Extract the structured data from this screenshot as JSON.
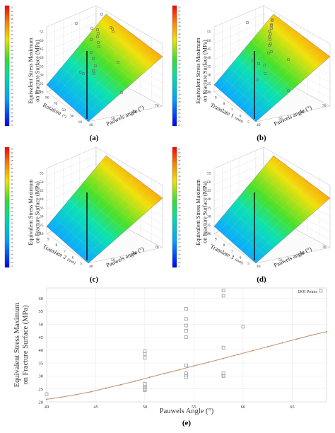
{
  "panels": [
    {
      "id": "a",
      "label": "(a)",
      "ztitle": [
        "Equivalent Stress Maximum",
        "on Fracture Surface (MPa)"
      ],
      "xlabel": "Pauwels angle (°)",
      "ylabel_main": "Rotation",
      "ylabel_unit": "(°)",
      "xticks": [
        "40",
        "50",
        "60",
        "70"
      ],
      "yticks": [
        "110",
        "90",
        "70",
        "50",
        "30",
        "10"
      ],
      "zticks": [
        "20",
        "25",
        "30",
        "35",
        "40",
        "45",
        "50",
        "55"
      ],
      "colorbar_ticks": [
        "51",
        "50",
        "49",
        "48",
        "47",
        "46",
        "45",
        "44",
        "43",
        "42",
        "41",
        "40",
        "39",
        "38",
        "37",
        "36",
        "35",
        "34",
        "33",
        "32",
        "31",
        "30",
        "29",
        "28",
        "27",
        "26",
        "25",
        "24",
        "23",
        "22",
        "21"
      ]
    },
    {
      "id": "b",
      "label": "(b)",
      "ztitle": [
        "Equivalent Stress Maximum",
        "on Fracture Surface (MPa)"
      ],
      "xlabel": "Pauwels angle (°)",
      "ylabel_main": "Translate 1",
      "ylabel_unit": "(mm)",
      "xticks": [
        "40",
        "50",
        "60",
        "70"
      ],
      "yticks": [
        "10",
        "9",
        "8",
        "7",
        "6",
        "5"
      ],
      "zticks": [
        "20",
        "25",
        "30",
        "35",
        "40",
        "45",
        "50",
        "55"
      ],
      "colorbar_ticks": [
        "53",
        "52",
        "51",
        "50",
        "49",
        "48",
        "47",
        "46",
        "45",
        "44",
        "43",
        "42",
        "41",
        "40",
        "39",
        "38",
        "37",
        "36",
        "35",
        "34",
        "33",
        "32",
        "31",
        "30",
        "29",
        "28",
        "27",
        "26",
        "25",
        "24",
        "23",
        "22"
      ]
    },
    {
      "id": "c",
      "label": "(c)",
      "ztitle": [
        "Equivalent Stress Maximum",
        "on Fracture Surface (MPa)"
      ],
      "xlabel": "Pauwels angle (°)",
      "ylabel_main": "Translate 2",
      "ylabel_unit": "(mm)",
      "xticks": [
        "40",
        "50",
        "60",
        "70"
      ],
      "yticks": [
        "10",
        "9",
        "8",
        "7",
        "6",
        "5"
      ],
      "zticks": [
        "20",
        "25",
        "30",
        "35",
        "40",
        "45",
        "50",
        "55"
      ],
      "colorbar_ticks": [
        "51",
        "50",
        "49",
        "48",
        "47",
        "46",
        "45",
        "44",
        "43",
        "42",
        "41",
        "40",
        "39",
        "38",
        "37",
        "36",
        "35",
        "34",
        "33",
        "32",
        "31",
        "30",
        "29",
        "28",
        "27",
        "26",
        "25",
        "24",
        "23",
        "22",
        "21"
      ]
    },
    {
      "id": "d",
      "label": "(d)",
      "ztitle": [
        "Equivalent Stress Maximum",
        "on Fracture Surface (MPa)"
      ],
      "xlabel": "Pauwels angle (°)",
      "ylabel_main": "Translate 3",
      "ylabel_unit": "(mm)",
      "xticks": [
        "40",
        "50",
        "60",
        "70"
      ],
      "yticks": [
        "10",
        "9",
        "8",
        "7",
        "6",
        "5"
      ],
      "zticks": [
        "20",
        "25",
        "30",
        "35",
        "40",
        "45",
        "50",
        "55"
      ],
      "colorbar_ticks": [
        "51",
        "50",
        "49",
        "48",
        "47",
        "46",
        "45",
        "44",
        "43",
        "42",
        "41",
        "40",
        "39",
        "38",
        "37",
        "36",
        "35",
        "34",
        "33",
        "32",
        "31",
        "30",
        "29",
        "28",
        "27",
        "26",
        "25",
        "24",
        "23",
        "22",
        "21"
      ]
    }
  ],
  "chart_data": {
    "type": "scatter",
    "label": "(e)",
    "xlabel": "Pauwels Angle (°)",
    "ylabel": [
      "Equivalent Stress Maximum",
      "on Fracture Surface (MPa)"
    ],
    "xlim": [
      40,
      68.5
    ],
    "ylim": [
      20,
      64
    ],
    "xticks": [
      40,
      45,
      50,
      55,
      60,
      65
    ],
    "yticks": [
      20,
      25,
      30,
      35,
      40,
      45,
      50,
      55,
      60
    ],
    "legend": {
      "text": "DOI Points",
      "placement": "top-right"
    },
    "grid": true,
    "series": [
      {
        "name": "DOI Points",
        "kind": "points",
        "points": [
          [
            40,
            23
          ],
          [
            50,
            24.5
          ],
          [
            50,
            25
          ],
          [
            50,
            25.5
          ],
          [
            50,
            26
          ],
          [
            50,
            26.5
          ],
          [
            50,
            27
          ],
          [
            50,
            37
          ],
          [
            50,
            38.5
          ],
          [
            50,
            39.5
          ],
          [
            54.2,
            29.5
          ],
          [
            54.2,
            30.5
          ],
          [
            54.2,
            31
          ],
          [
            54.2,
            34
          ],
          [
            54.2,
            45
          ],
          [
            54.2,
            47.5
          ],
          [
            54.2,
            49.5
          ],
          [
            54.2,
            52
          ],
          [
            54.2,
            56
          ],
          [
            58,
            30
          ],
          [
            58,
            30.5
          ],
          [
            58,
            31
          ],
          [
            58,
            41
          ],
          [
            58,
            61
          ],
          [
            58,
            63
          ],
          [
            60,
            49
          ]
        ]
      },
      {
        "kind": "fit",
        "points": [
          [
            40,
            21
          ],
          [
            41.5,
            21.8
          ],
          [
            43,
            22.8
          ],
          [
            44.5,
            23.9
          ],
          [
            46,
            25.3
          ],
          [
            47.5,
            26.6
          ],
          [
            49,
            28
          ],
          [
            50.5,
            29.5
          ],
          [
            52,
            31
          ],
          [
            53.5,
            32.4
          ],
          [
            55,
            33.9
          ],
          [
            56.5,
            35.3
          ],
          [
            58,
            36.8
          ],
          [
            59.5,
            38.3
          ],
          [
            61,
            39.8
          ],
          [
            62.5,
            41.3
          ],
          [
            64,
            42.8
          ],
          [
            65.5,
            44.3
          ],
          [
            67,
            45.8
          ],
          [
            68.5,
            47.1
          ]
        ]
      }
    ]
  }
}
